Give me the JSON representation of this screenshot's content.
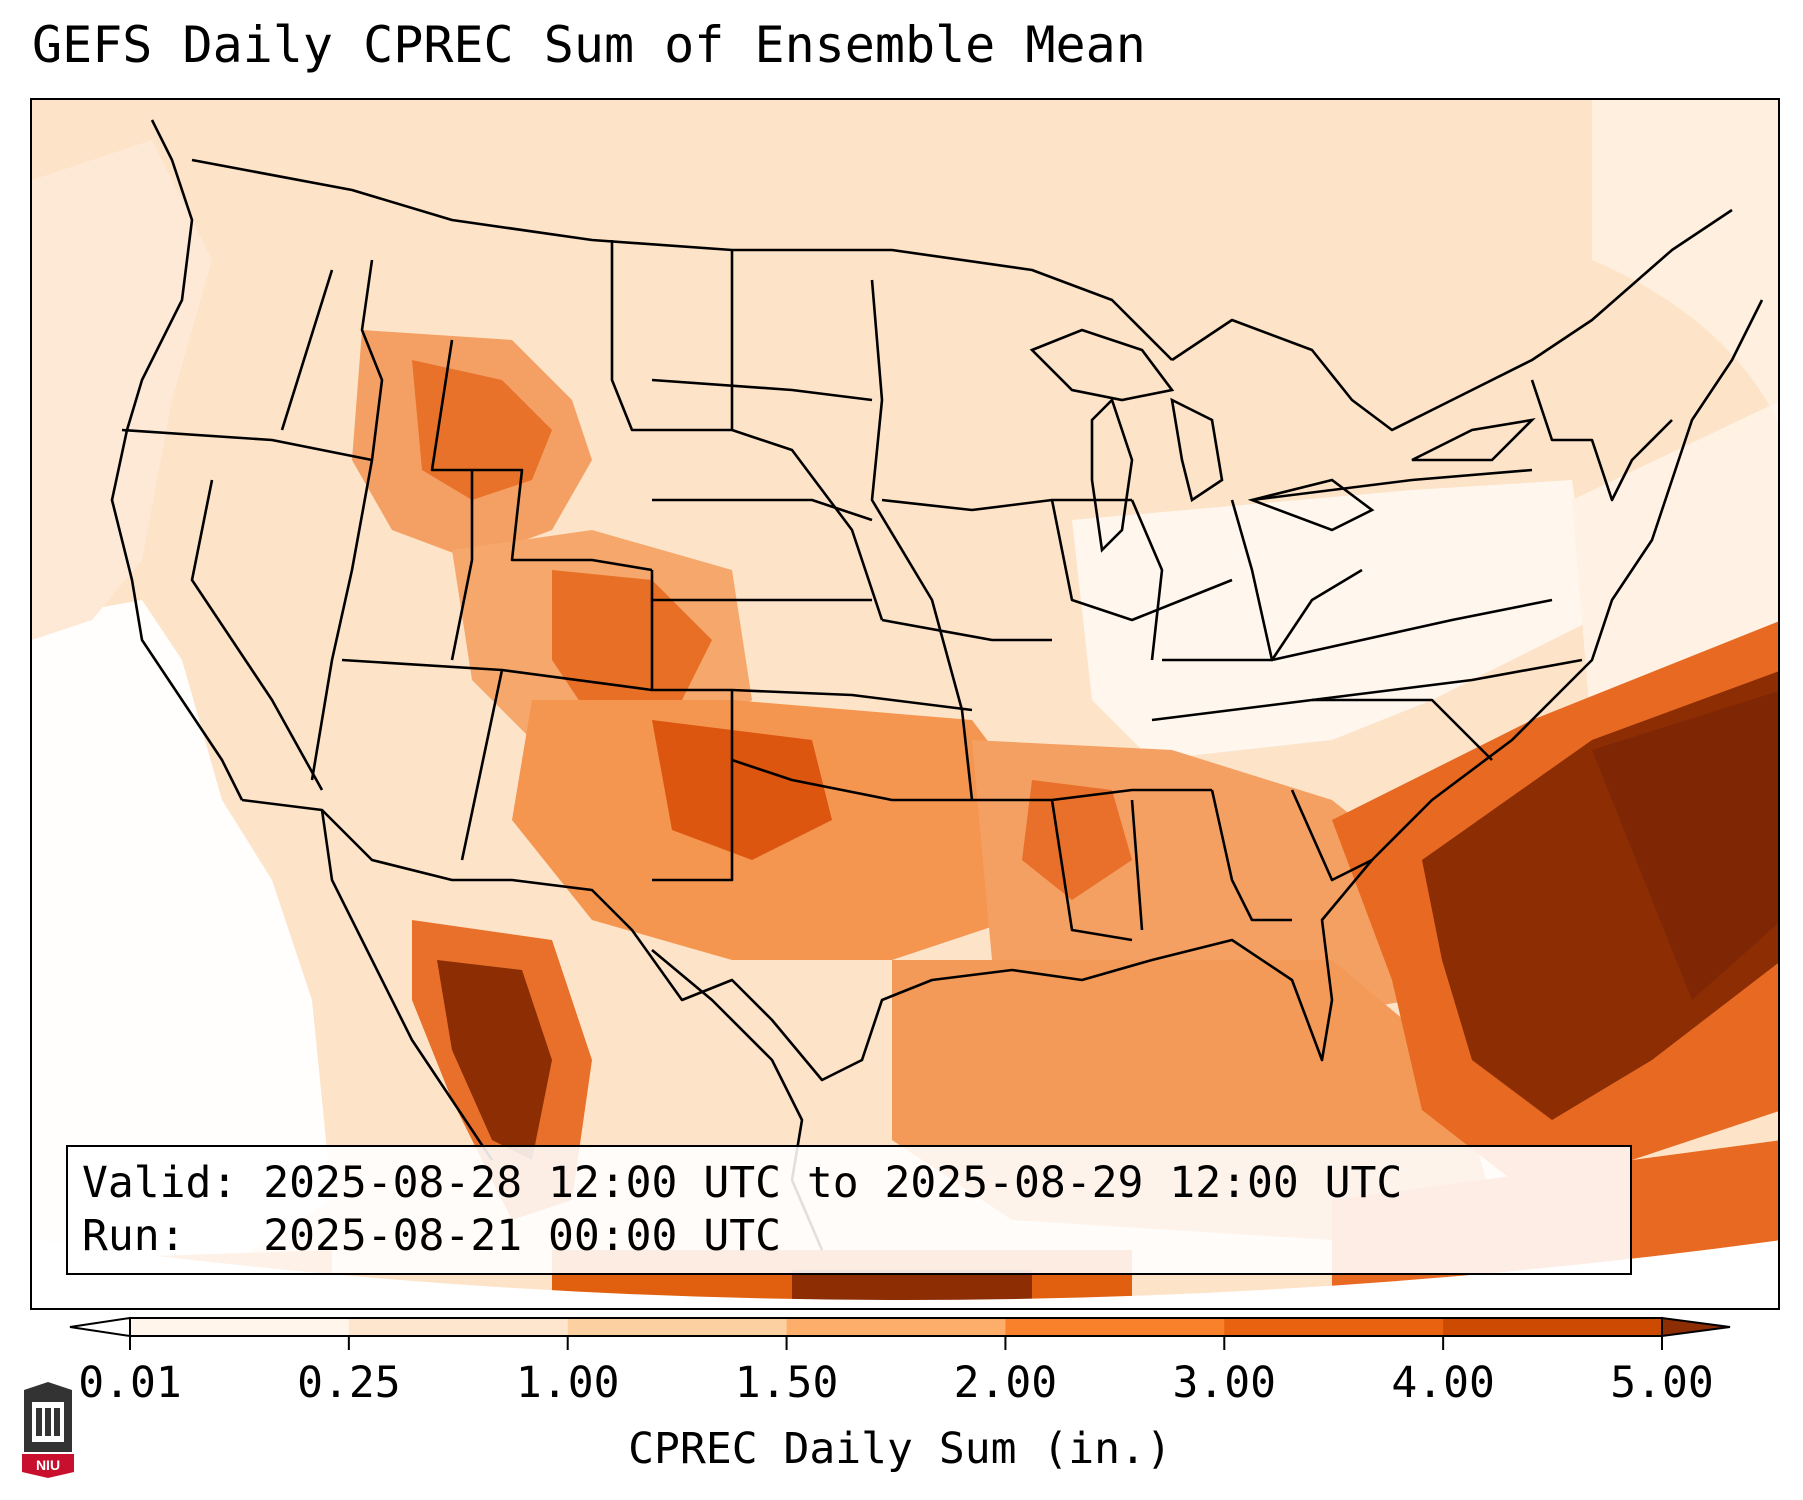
{
  "title": "GEFS Daily CPREC Sum of Ensemble Mean",
  "info": {
    "valid_line": "Valid: 2025-08-28 12:00 UTC to 2025-08-29 12:00 UTC",
    "run_line": "Run:   2025-08-21 00:00 UTC"
  },
  "colorbar": {
    "label": "CPREC Daily Sum (in.)",
    "ticks": [
      "0.01",
      "0.25",
      "1.00",
      "1.50",
      "2.00",
      "3.00",
      "4.00",
      "5.00"
    ],
    "colors": [
      "#fff5eb",
      "#fee6ce",
      "#fdd0a2",
      "#fdae6b",
      "#f9812c",
      "#e8620f",
      "#cc4a02",
      "#8c2d04"
    ],
    "under_color": "#ffffff",
    "over_color": "#7f2704"
  },
  "logo": {
    "text": "NIU",
    "color": "#c8102e"
  }
}
